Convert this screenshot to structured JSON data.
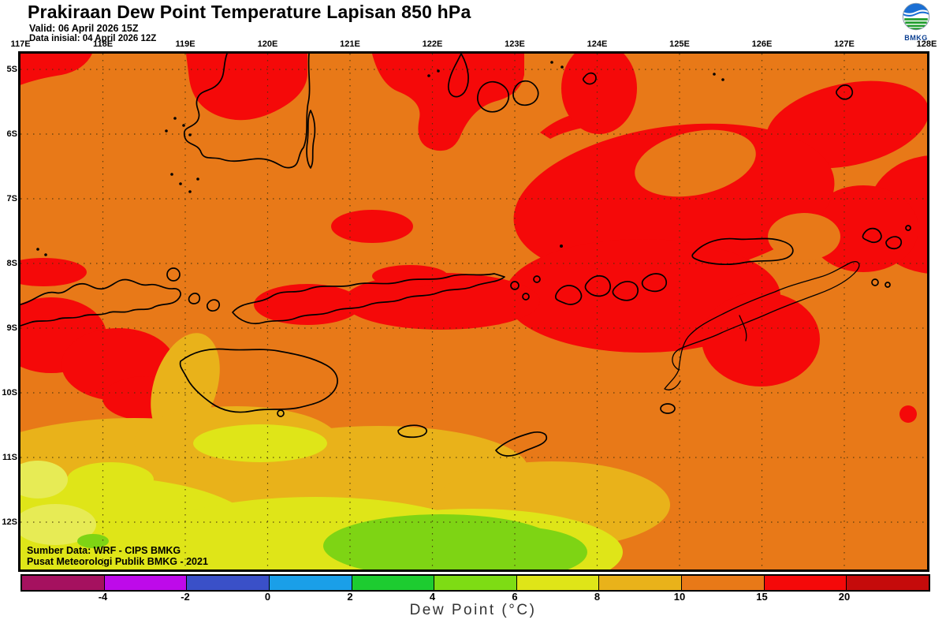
{
  "header": {
    "title": "Prakiraan Dew Point Temperature Lapisan 850 hPa",
    "valid": "Valid: 06 April 2026 15Z",
    "data_initial": "Data inisial: 04 April 2026 12Z"
  },
  "logo": {
    "label": "BMKG"
  },
  "map": {
    "lon_labels": [
      "117E",
      "118E",
      "119E",
      "120E",
      "121E",
      "122E",
      "123E",
      "124E",
      "125E",
      "126E",
      "127E",
      "128E"
    ],
    "lat_labels": [
      "5S",
      "6S",
      "7S",
      "8S",
      "9S",
      "10S",
      "11S",
      "12S"
    ],
    "attribution": [
      "Sumber Data: WRF - CIPS BMKG",
      "Pusat Meteorologi Publik BMKG - 2021"
    ]
  },
  "colorbar": {
    "caption": "Dew Point (°C)",
    "tick_labels": [
      "-4",
      "-2",
      "0",
      "2",
      "4",
      "6",
      "8",
      "10",
      "15",
      "20"
    ],
    "segment_colors": [
      "#a5115f",
      "#be0aea",
      "#3a50c8",
      "#1a9fe8",
      "#1dcc30",
      "#7edc14",
      "#dfe518",
      "#e9b21a",
      "#e87918",
      "#f50909",
      "#c50b0b"
    ],
    "segment_ranges": [
      "< -4",
      "-4 to -2",
      "-2 to 0",
      "0 to 2",
      "2 to 4",
      "4 to 6",
      "6 to 8",
      "8 to 10",
      "10 to 15",
      "15 to 20",
      "> 20"
    ]
  },
  "colors": {
    "orange": "#e87918",
    "red": "#f50909",
    "gold": "#e9b21a",
    "yellow": "#dfe518",
    "pale": "#e7eb55",
    "ygreen": "#7ed414",
    "coast": "#000000",
    "grid": "#43330a"
  }
}
